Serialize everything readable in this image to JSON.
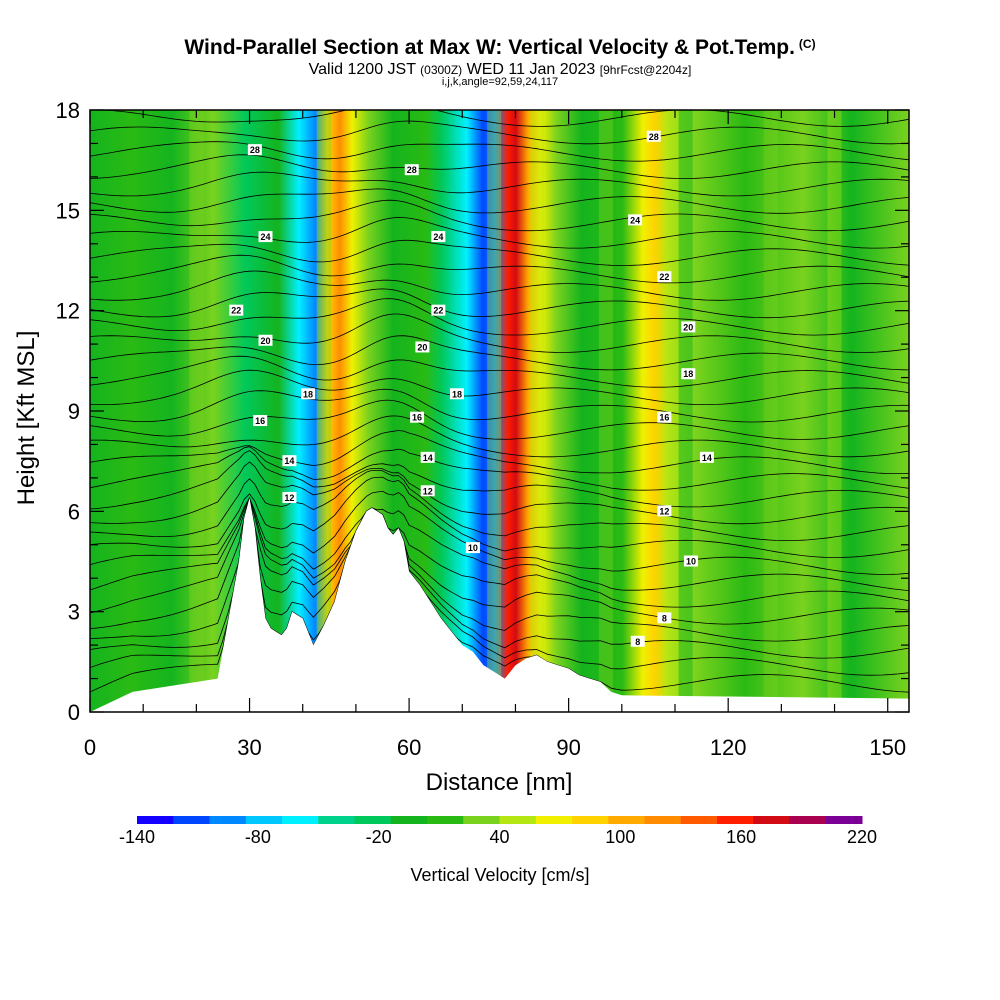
{
  "title": {
    "main": "Wind-Parallel Section at Max W: Vertical Velocity & Pot.Temp.",
    "mark": "(C)",
    "valid_a": "Valid 1200 JST",
    "valid_z": "(0300Z)",
    "valid_b": "WED 11 Jan 2023",
    "forecast": "[9hrFcst@2204z]",
    "indices": "i,j,k,angle=92,59,24,117"
  },
  "chart_data": {
    "type": "heatmap",
    "xlabel": "Distance [nm]",
    "ylabel": "Height [Kft MSL]",
    "xlim": [
      0,
      154
    ],
    "ylim": [
      0,
      18
    ],
    "xticks": [
      "0",
      "30",
      "60",
      "90",
      "120",
      "150"
    ],
    "yticks": [
      "0",
      "3",
      "6",
      "9",
      "12",
      "15",
      "18"
    ],
    "colorbar": {
      "label": "Vertical Velocity [cm/s]",
      "range": [
        -140,
        220
      ],
      "ticks": [
        "-140",
        "-80",
        "-20",
        "40",
        "100",
        "160",
        "220"
      ],
      "colors": [
        "#1400ff",
        "#0046ff",
        "#0088ff",
        "#00c8ff",
        "#00f0ff",
        "#00d28c",
        "#00c85a",
        "#14b41e",
        "#2aba14",
        "#7ad21e",
        "#b4e614",
        "#f0f000",
        "#ffd200",
        "#ffaa00",
        "#ff8c00",
        "#ff5a00",
        "#ff1e00",
        "#d20a14",
        "#aa0050",
        "#7a0096"
      ]
    },
    "terrain_kft": {
      "x": [
        0,
        8,
        24,
        28,
        29,
        30,
        31,
        32,
        33,
        34,
        35,
        36,
        37,
        38,
        40,
        42,
        44,
        46,
        48,
        50,
        52,
        53,
        54,
        55,
        56,
        57,
        58,
        59,
        60,
        62,
        64,
        66,
        68,
        70,
        72,
        74,
        76,
        78,
        80,
        82,
        84,
        86,
        88,
        90,
        92,
        94,
        96,
        98,
        100,
        154
      ],
      "y": [
        0,
        0.6,
        1.0,
        4.5,
        5.8,
        6.4,
        5.5,
        4.0,
        2.8,
        2.5,
        2.4,
        2.3,
        2.5,
        3.0,
        2.8,
        2.0,
        2.6,
        3.3,
        4.5,
        5.4,
        6.0,
        6.1,
        6.0,
        5.9,
        5.5,
        5.3,
        5.5,
        5.1,
        4.2,
        3.8,
        3.3,
        2.8,
        2.4,
        2.0,
        1.8,
        1.4,
        1.2,
        1.0,
        1.4,
        1.6,
        1.7,
        1.5,
        1.4,
        1.3,
        1.1,
        1.0,
        0.9,
        0.6,
        0.5,
        0.4
      ]
    },
    "theta_contour_labels": [
      {
        "text": "28",
        "x": 31,
        "y": 16.8
      },
      {
        "text": "28",
        "x": 60.5,
        "y": 16.2
      },
      {
        "text": "28",
        "x": 106,
        "y": 17.2
      },
      {
        "text": "24",
        "x": 33,
        "y": 14.2
      },
      {
        "text": "24",
        "x": 65.5,
        "y": 14.2
      },
      {
        "text": "24",
        "x": 102.5,
        "y": 14.7
      },
      {
        "text": "22",
        "x": 108,
        "y": 13.0
      },
      {
        "text": "22",
        "x": 27.5,
        "y": 12.0
      },
      {
        "text": "22",
        "x": 65.5,
        "y": 12.0
      },
      {
        "text": "20",
        "x": 33,
        "y": 11.1
      },
      {
        "text": "20",
        "x": 62.5,
        "y": 10.9
      },
      {
        "text": "20",
        "x": 112.5,
        "y": 11.5
      },
      {
        "text": "18",
        "x": 41,
        "y": 9.5
      },
      {
        "text": "18",
        "x": 69,
        "y": 9.5
      },
      {
        "text": "18",
        "x": 112.5,
        "y": 10.1
      },
      {
        "text": "16",
        "x": 32,
        "y": 8.7
      },
      {
        "text": "16",
        "x": 61.5,
        "y": 8.8
      },
      {
        "text": "16",
        "x": 108,
        "y": 8.8
      },
      {
        "text": "14",
        "x": 37.5,
        "y": 7.5
      },
      {
        "text": "14",
        "x": 63.5,
        "y": 7.6
      },
      {
        "text": "14",
        "x": 116,
        "y": 7.6
      },
      {
        "text": "12",
        "x": 37.5,
        "y": 6.4
      },
      {
        "text": "12",
        "x": 63.5,
        "y": 6.6
      },
      {
        "text": "12",
        "x": 108,
        "y": 6.0
      },
      {
        "text": "10",
        "x": 72,
        "y": 4.9
      },
      {
        "text": "10",
        "x": 113,
        "y": 4.5
      },
      {
        "text": "8",
        "x": 108,
        "y": 2.8
      },
      {
        "text": "8",
        "x": 103,
        "y": 2.1
      }
    ]
  }
}
